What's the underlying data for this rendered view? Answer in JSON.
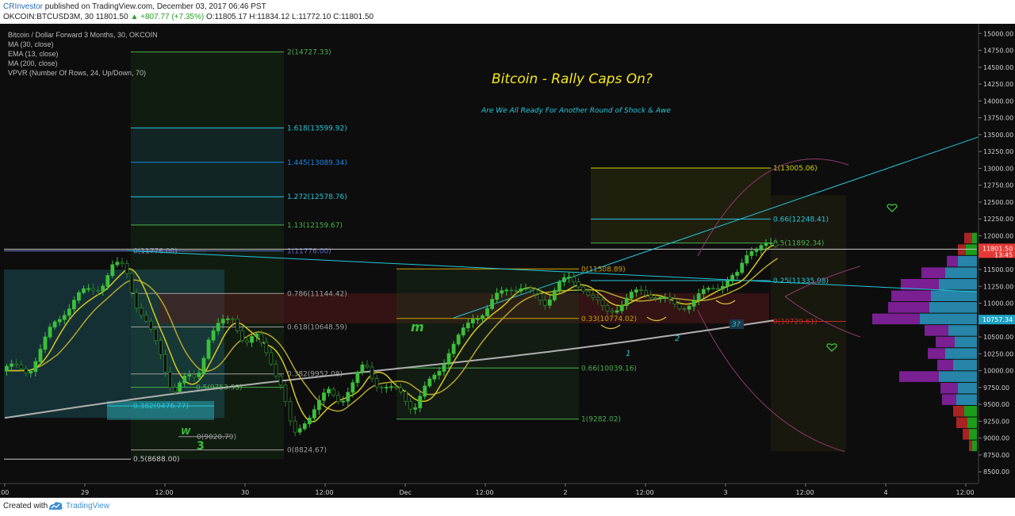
{
  "header": {
    "author": "CRInvestor",
    "published": "published on TradingView.com, December 03, 2017 06:46 PST",
    "symbol": "OKCOIN:BTCUSD3M, 30",
    "last": "11801.50",
    "change": "▲ +807.77 (+7.35%)",
    "ohlc": "O:11805.17 H:11834.12 L:11772.10 C:11801.50"
  },
  "legend": {
    "title": "Bitcoin / Dollar Forward 3 Months, 30, OKCOIN",
    "indicators": [
      "MA (30, close)",
      "EMA (13, close)",
      "MA (200, close)",
      "VPVR (Number Of Rows, 24, Up/Down, 70)"
    ]
  },
  "annotations": {
    "headline": "Bitcoin - Rally Caps On?",
    "subheadline": "Are We All Ready For Another Round of Shock & Awe",
    "marker_m": "m",
    "marker_1": "1",
    "marker_2": "2",
    "marker_3q": "3?",
    "marker_w": "W",
    "marker_3": "3"
  },
  "footer": {
    "created_with": "Created with",
    "brand": "TradingView"
  },
  "colors": {
    "background": "#0d0d0d",
    "fib_green": "#4caf50",
    "fib_cyan": "#26c6da",
    "fib_yellow": "#d4d400",
    "candle_up": "#3cbf3c",
    "ema": "#d6c81e",
    "ma30": "#b5a52c",
    "ma200": "#b0b0b0",
    "price_tag": "#e53935",
    "vp_up": "#1fb71f",
    "vp_down": "#c62828",
    "vp_va_up": "#2b9bc4",
    "vp_va_down": "#8e24aa"
  },
  "chart_data": {
    "type": "candlestick",
    "symbol": "OKCOIN:BTCUSD3M",
    "interval": "30",
    "x_ticks": [
      ":00",
      "29",
      "12:00",
      "30",
      "12:00",
      "Dec",
      "12:00",
      "2",
      "12:00",
      "3",
      "12:00",
      "4",
      "12:00"
    ],
    "y_ticks": [
      "15000.00",
      "14750.00",
      "14500.00",
      "14250.00",
      "14000.00",
      "13750.00",
      "13500.00",
      "13250.00",
      "13000.00",
      "12750.00",
      "12500.00",
      "12250.00",
      "12000.00",
      "11750.00",
      "11500.00",
      "11250.00",
      "11000.00",
      "10750.00",
      "10500.00",
      "10250.00",
      "10000.00",
      "9750.00",
      "9500.00",
      "9250.00",
      "9000.00",
      "8750.00",
      "8500.00"
    ],
    "ylim": [
      8350,
      15050
    ],
    "current_price": "11801.50",
    "countdown": "13:45",
    "marker_price": "10757.34",
    "close_path": [
      [
        0.0,
        10000
      ],
      [
        0.3,
        10000
      ],
      [
        0.6,
        10020
      ],
      [
        0.9,
        10350
      ],
      [
        1.2,
        10700
      ],
      [
        1.5,
        10900
      ],
      [
        1.8,
        11050
      ],
      [
        2.1,
        11150
      ],
      [
        2.4,
        11250
      ],
      [
        2.7,
        11550
      ],
      [
        3.0,
        11600
      ],
      [
        3.3,
        11000
      ],
      [
        3.6,
        10600
      ],
      [
        3.9,
        10200
      ],
      [
        4.2,
        9650
      ],
      [
        4.5,
        9850
      ],
      [
        4.8,
        9950
      ],
      [
        5.1,
        10550
      ],
      [
        5.4,
        10700
      ],
      [
        5.7,
        10800
      ],
      [
        6.0,
        10350
      ],
      [
        6.3,
        10450
      ],
      [
        6.6,
        10250
      ],
      [
        6.9,
        9800
      ],
      [
        7.2,
        9050
      ],
      [
        7.5,
        9300
      ],
      [
        7.8,
        9450
      ],
      [
        8.1,
        9650
      ],
      [
        8.4,
        9550
      ],
      [
        8.7,
        9800
      ],
      [
        9.0,
        10150
      ],
      [
        9.3,
        9850
      ],
      [
        9.6,
        9700
      ],
      [
        9.9,
        9650
      ],
      [
        10.2,
        9400
      ],
      [
        10.5,
        9700
      ],
      [
        10.8,
        10000
      ],
      [
        11.1,
        10350
      ],
      [
        11.4,
        10550
      ],
      [
        11.7,
        10800
      ],
      [
        12.0,
        10850
      ],
      [
        12.3,
        11050
      ],
      [
        12.6,
        11250
      ],
      [
        12.9,
        11250
      ],
      [
        13.2,
        11150
      ],
      [
        13.5,
        11050
      ],
      [
        13.8,
        11250
      ],
      [
        14.1,
        11300
      ],
      [
        14.4,
        11250
      ],
      [
        14.7,
        11050
      ],
      [
        15.0,
        10900
      ],
      [
        15.3,
        11000
      ],
      [
        15.6,
        11100
      ],
      [
        15.9,
        11150
      ],
      [
        16.2,
        11100
      ],
      [
        16.5,
        11000
      ],
      [
        16.8,
        10950
      ],
      [
        17.1,
        11050
      ],
      [
        17.4,
        11150
      ],
      [
        17.7,
        11250
      ],
      [
        18.0,
        11300
      ],
      [
        18.3,
        11350
      ],
      [
        18.6,
        11800
      ],
      [
        18.9,
        11900
      ],
      [
        19.2,
        11850
      ],
      [
        19.32,
        11801.5
      ]
    ],
    "x_scale": "x = hours/6 since Nov 28 18:00 (approx); tick '29' at x=2.0",
    "fib_retracements": [
      {
        "label": "2(14727.33)",
        "price": 14727.33
      },
      {
        "label": "1.618(13599.92)",
        "price": 13599.92
      },
      {
        "label": "1.445(13089.34)",
        "price": 13089.34
      },
      {
        "label": "1.272(12578.76)",
        "price": 12578.76
      },
      {
        "label": "1.13(12159.67)",
        "price": 12159.67
      },
      {
        "label": "0(11776.00)",
        "price": 11776.0
      },
      {
        "label": "1(11776.00)",
        "price": 11776.0
      },
      {
        "label": "0.786(11144.42)",
        "price": 11144.42
      },
      {
        "label": "0.618(10648.59)",
        "price": 10648.59
      },
      {
        "label": "0.382(9952.08)",
        "price": 9952.08
      },
      {
        "label": "0.5(9753.53)",
        "price": 9753.53
      },
      {
        "label": "0.382(9476.77)",
        "price": 9476.77
      },
      {
        "label": "0(9020.79)",
        "price": 9020.79
      },
      {
        "label": "0(8824.67)",
        "price": 8824.67
      },
      {
        "label": "0.5(8688.00)",
        "price": 8688.0
      },
      {
        "label": "1(13005.06)",
        "price": 13005.06
      },
      {
        "label": "0.66(12248.41)",
        "price": 12248.41
      },
      {
        "label": "0.5(11892.34)",
        "price": 11892.34
      },
      {
        "label": "0(11508.89)",
        "price": 11508.89
      },
      {
        "label": "0.25(11335.98)",
        "price": 11335.98
      },
      {
        "label": "0.33(10774.02)",
        "price": 10774.02
      },
      {
        "label": "0(10729.61)",
        "price": 10729.61
      },
      {
        "label": "0.66(10039.16)",
        "price": 10039.16
      },
      {
        "label": "1(9282.02)",
        "price": 9282.02
      }
    ],
    "volume_profile_rows": [
      {
        "up": 6,
        "down": 10
      },
      {
        "up": 14,
        "down": 10
      },
      {
        "up": 24,
        "down": 14
      },
      {
        "up": 40,
        "down": 30
      },
      {
        "up": 48,
        "down": 48
      },
      {
        "up": 58,
        "down": 50
      },
      {
        "up": 60,
        "down": 52
      },
      {
        "up": 72,
        "down": 60
      },
      {
        "up": 36,
        "down": 30
      },
      {
        "up": 28,
        "down": 24
      },
      {
        "up": 40,
        "down": 22
      },
      {
        "up": 30,
        "down": 20
      },
      {
        "up": 48,
        "down": 50
      },
      {
        "up": 24,
        "down": 22
      },
      {
        "up": 26,
        "down": 18
      },
      {
        "up": 16,
        "down": 14
      },
      {
        "up": 12,
        "down": 14
      },
      {
        "up": 10,
        "down": 8
      },
      {
        "up": 6,
        "down": 4
      }
    ]
  }
}
